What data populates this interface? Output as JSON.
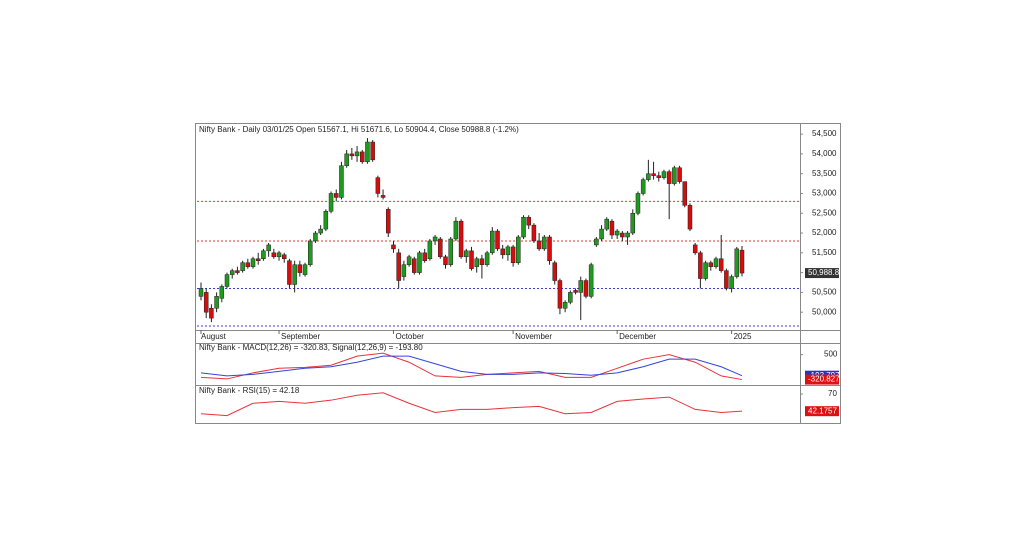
{
  "chart_data": {
    "type": "candlestick",
    "title": "Nifty Bank - Daily 03/01/25 Open 51567.1, Hi 51671.6, Lo 50904.4, Close 50988.8 (-1.2%)",
    "categories": [
      "August",
      null,
      null,
      null,
      null,
      null,
      null,
      null,
      null,
      null,
      null,
      null,
      null,
      null,
      null,
      "September",
      null,
      null,
      null,
      null,
      null,
      null,
      null,
      null,
      null,
      null,
      null,
      null,
      null,
      null,
      null,
      null,
      null,
      null,
      null,
      null,
      null,
      "October",
      null,
      null,
      null,
      null,
      null,
      null,
      null,
      null,
      null,
      null,
      null,
      null,
      null,
      null,
      null,
      null,
      null,
      null,
      null,
      null,
      null,
      null,
      "November",
      null,
      null,
      null,
      null,
      null,
      null,
      null,
      null,
      null,
      null,
      null,
      null,
      null,
      null,
      null,
      null,
      null,
      null,
      null,
      "December",
      null,
      null,
      null,
      null,
      null,
      null,
      null,
      null,
      null,
      null,
      null,
      null,
      null,
      null,
      null,
      null,
      null,
      null,
      null,
      null,
      null,
      "2025",
      null,
      null
    ],
    "candles": [
      [
        50400,
        50750,
        50300,
        50600
      ],
      [
        50500,
        50600,
        49850,
        50000
      ],
      [
        50100,
        50200,
        49750,
        49850
      ],
      [
        50100,
        50500,
        50000,
        50400
      ],
      [
        50350,
        50700,
        50250,
        50650
      ],
      [
        50650,
        51000,
        50600,
        50950
      ],
      [
        50950,
        51100,
        50850,
        51050
      ],
      [
        51050,
        51150,
        50950,
        51000
      ],
      [
        51050,
        51300,
        51000,
        51250
      ],
      [
        51250,
        51350,
        51100,
        51150
      ],
      [
        51150,
        51400,
        51100,
        51350
      ],
      [
        51350,
        51500,
        51200,
        51300
      ],
      [
        51350,
        51600,
        51300,
        51550
      ],
      [
        51550,
        51750,
        51400,
        51700
      ],
      [
        51500,
        51600,
        51350,
        51400
      ],
      [
        51400,
        51550,
        51300,
        51500
      ],
      [
        51450,
        51500,
        51250,
        51350
      ],
      [
        51300,
        51350,
        50600,
        50700
      ],
      [
        50700,
        51300,
        50500,
        51200
      ],
      [
        51200,
        51300,
        50900,
        51000
      ],
      [
        50950,
        51250,
        50900,
        51200
      ],
      [
        51200,
        51850,
        51150,
        51800
      ],
      [
        51800,
        52050,
        51750,
        52000
      ],
      [
        52000,
        52200,
        51950,
        52100
      ],
      [
        52100,
        52600,
        52050,
        52550
      ],
      [
        52550,
        53050,
        52500,
        53000
      ],
      [
        53000,
        53100,
        52800,
        52900
      ],
      [
        52900,
        53800,
        52850,
        53700
      ],
      [
        53700,
        54100,
        53650,
        54000
      ],
      [
        54000,
        54150,
        53850,
        53950
      ],
      [
        53950,
        54200,
        53800,
        54050
      ],
      [
        54050,
        54100,
        53750,
        53800
      ],
      [
        53800,
        54400,
        53750,
        54300
      ],
      [
        54300,
        54350,
        53800,
        53850
      ],
      [
        53400,
        53450,
        52900,
        53000
      ],
      [
        52950,
        53100,
        52850,
        52900
      ],
      [
        52600,
        52650,
        51900,
        52000
      ],
      [
        51700,
        51800,
        51500,
        51600
      ],
      [
        51500,
        51600,
        50600,
        50800
      ],
      [
        50900,
        51300,
        50800,
        51200
      ],
      [
        51200,
        51450,
        51150,
        51400
      ],
      [
        51350,
        51400,
        50950,
        51000
      ],
      [
        51000,
        51550,
        50950,
        51500
      ],
      [
        51500,
        51600,
        51250,
        51300
      ],
      [
        51350,
        51850,
        51300,
        51800
      ],
      [
        51800,
        51950,
        51700,
        51900
      ],
      [
        51850,
        51900,
        51350,
        51400
      ],
      [
        51400,
        51450,
        51100,
        51200
      ],
      [
        51200,
        51900,
        51150,
        51850
      ],
      [
        51850,
        52400,
        51800,
        52300
      ],
      [
        52300,
        52350,
        51350,
        51400
      ],
      [
        51400,
        51600,
        51250,
        51550
      ],
      [
        51550,
        51650,
        51050,
        51100
      ],
      [
        51150,
        51400,
        51000,
        51350
      ],
      [
        51350,
        51450,
        50850,
        51200
      ],
      [
        51200,
        51550,
        51150,
        51500
      ],
      [
        51500,
        52150,
        51450,
        52050
      ],
      [
        52050,
        52100,
        51550,
        51600
      ],
      [
        51600,
        51700,
        51350,
        51450
      ],
      [
        51450,
        51700,
        51300,
        51650
      ],
      [
        51650,
        51700,
        51150,
        51250
      ],
      [
        51250,
        51950,
        51200,
        51900
      ],
      [
        51900,
        52450,
        51850,
        52400
      ],
      [
        52400,
        52450,
        52100,
        52200
      ],
      [
        52200,
        52250,
        51750,
        51800
      ],
      [
        51800,
        52000,
        51550,
        51600
      ],
      [
        51600,
        51950,
        51550,
        51900
      ],
      [
        51900,
        51950,
        51200,
        51300
      ],
      [
        51250,
        51300,
        50700,
        50800
      ],
      [
        50800,
        50850,
        49950,
        50100
      ],
      [
        50100,
        50300,
        50000,
        50250
      ],
      [
        50250,
        50550,
        50200,
        50500
      ],
      [
        50550,
        50600,
        50450,
        50500
      ],
      [
        50500,
        50900,
        49800,
        50800
      ],
      [
        50800,
        50850,
        50350,
        50400
      ],
      [
        50400,
        51250,
        50350,
        51200
      ],
      [
        51700,
        51900,
        51650,
        51850
      ],
      [
        51850,
        52200,
        51800,
        52100
      ],
      [
        52100,
        52400,
        52050,
        52350
      ],
      [
        52300,
        52350,
        51850,
        51950
      ],
      [
        51950,
        52100,
        51850,
        52050
      ],
      [
        52000,
        52050,
        51800,
        51900
      ],
      [
        51900,
        52050,
        51700,
        52000
      ],
      [
        52000,
        52600,
        51950,
        52500
      ],
      [
        52500,
        53050,
        52450,
        53000
      ],
      [
        53000,
        53400,
        52950,
        53350
      ],
      [
        53350,
        53850,
        53300,
        53500
      ],
      [
        53500,
        53800,
        53350,
        53450
      ],
      [
        53450,
        53550,
        53300,
        53400
      ],
      [
        53400,
        53600,
        53350,
        53550
      ],
      [
        53550,
        53600,
        52350,
        53250
      ],
      [
        53250,
        53700,
        53200,
        53650
      ],
      [
        53650,
        53700,
        53250,
        53300
      ],
      [
        53300,
        53300,
        52650,
        52700
      ],
      [
        52700,
        52750,
        52050,
        52100
      ],
      [
        51700,
        51750,
        51450,
        51500
      ],
      [
        51500,
        51550,
        50600,
        50850
      ],
      [
        50850,
        51300,
        50800,
        51250
      ],
      [
        51250,
        51300,
        51050,
        51150
      ],
      [
        51150,
        51400,
        51100,
        51350
      ],
      [
        51350,
        51950,
        51000,
        51050
      ],
      [
        51050,
        51100,
        50550,
        50600
      ],
      [
        50600,
        50950,
        50500,
        50900
      ],
      [
        50900,
        51650,
        50850,
        51600
      ],
      [
        51567.1,
        51671.6,
        50904.4,
        50988.8
      ]
    ],
    "colors": {
      "up": "#1f9a1f",
      "down": "#d40d0d"
    },
    "ylim": [
      49550,
      54730
    ],
    "yticks": [
      {
        "value": 50000,
        "label": "50,000"
      },
      {
        "value": 50500,
        "label": "50,500"
      },
      {
        "value": 51000,
        "label": "51,000"
      },
      {
        "value": 51500,
        "label": "51,500"
      },
      {
        "value": 52000,
        "label": "52,000"
      },
      {
        "value": 52500,
        "label": "52,500"
      },
      {
        "value": 53000,
        "label": "53,000"
      },
      {
        "value": 53500,
        "label": "53,500"
      },
      {
        "value": 54000,
        "label": "54,000"
      },
      {
        "value": 54500,
        "label": "54,500"
      }
    ],
    "hlines": [
      {
        "value": 52800,
        "color": "#e03a3a"
      },
      {
        "value": 51800,
        "color": "#e03a3a"
      },
      {
        "value": 50600,
        "color": "#3a3ae0"
      },
      {
        "value": 49650,
        "color": "#3a3ae0"
      }
    ],
    "last_price": {
      "value": 50988.8,
      "label": "50,988.8",
      "color": "#333333"
    },
    "macd": {
      "title": "Nifty Bank - MACD(12,26) = -320.83, Signal(12,26,9) = -193.80",
      "x": [
        0,
        5,
        10,
        15,
        20,
        25,
        30,
        35,
        40,
        45,
        50,
        55,
        60,
        65,
        70,
        75,
        80,
        85,
        90,
        95,
        100,
        104
      ],
      "series": [
        {
          "color": "#e8333a",
          "values": [
            -250,
            -300,
            -100,
            50,
            80,
            150,
            450,
            550,
            250,
            -200,
            -250,
            -150,
            -100,
            -50,
            -250,
            -250,
            50,
            350,
            500,
            250,
            -200,
            -320.83
          ]
        },
        {
          "color": "#3344dd",
          "values": [
            -100,
            -200,
            -150,
            -50,
            50,
            100,
            250,
            450,
            450,
            200,
            -50,
            -150,
            -150,
            -100,
            -120,
            -180,
            -100,
            100,
            350,
            350,
            100,
            -193.8
          ]
        }
      ],
      "ylim": [
        -500,
        850
      ],
      "yticks": [
        500
      ],
      "boxes": [
        {
          "value": -193.797,
          "label": "-193.797",
          "color": "#2233cc"
        },
        {
          "value": -320.827,
          "label": "-320.827",
          "color": "#dd1111"
        }
      ]
    },
    "rsi": {
      "title": "Nifty Bank - RSI(15) = 42.18",
      "x": [
        0,
        5,
        10,
        15,
        20,
        25,
        30,
        35,
        40,
        45,
        50,
        55,
        60,
        65,
        70,
        75,
        80,
        85,
        90,
        95,
        100,
        104
      ],
      "color": "#e8333a",
      "values": [
        38,
        35,
        55,
        58,
        55,
        60,
        68,
        72,
        55,
        40,
        45,
        45,
        48,
        50,
        38,
        40,
        58,
        62,
        65,
        45,
        40,
        42.18
      ],
      "ylim": [
        23,
        83
      ],
      "yticks": [
        70
      ],
      "box": {
        "value": 42.1757,
        "label": "42.1757",
        "color": "#dd1111"
      }
    }
  }
}
